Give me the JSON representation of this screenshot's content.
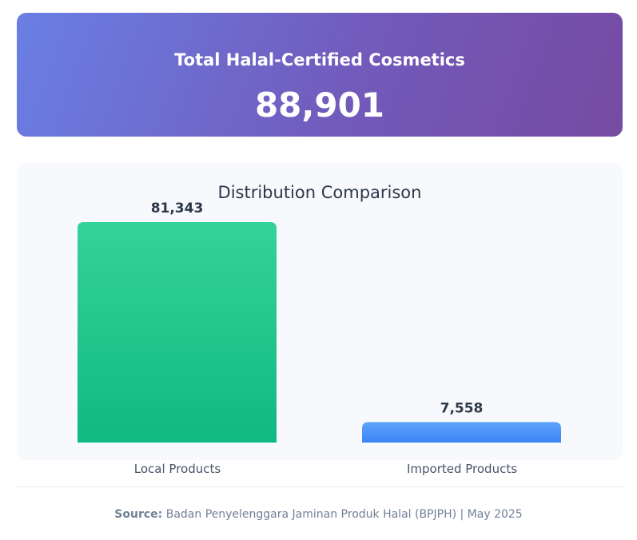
{
  "header": {
    "title": "Total Halal-Certified Cosmetics",
    "total": "88,901"
  },
  "chart_data": {
    "type": "bar",
    "title": "Distribution Comparison",
    "categories": [
      "Local Products",
      "Imported Products"
    ],
    "values": [
      81343,
      7558
    ],
    "value_labels": [
      "81,343",
      "7,558"
    ],
    "colors": [
      "#10b981",
      "#3b82f6"
    ],
    "xlabel": "",
    "ylabel": "",
    "grid": false
  },
  "footer": {
    "source_label": "Source:",
    "source_text": "Badan Penyelenggara Jaminan Produk Halal (BPJPH) | May 2025"
  }
}
